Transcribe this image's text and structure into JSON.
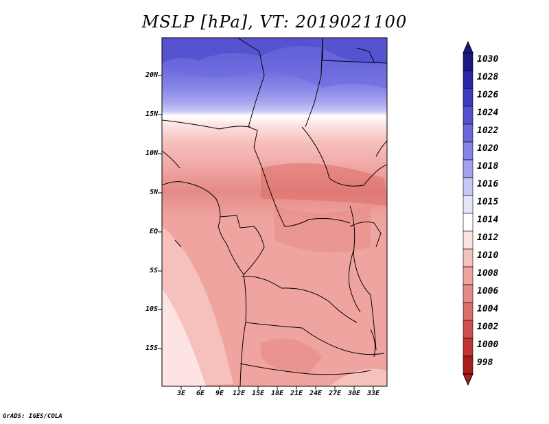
{
  "title": "MSLP [hPa], VT: 2019021100",
  "credit": "GrADS: IGES/COLA",
  "lat_labels": [
    "20N",
    "15N",
    "10N",
    "5N",
    "EQ",
    "5S",
    "10S",
    "15S"
  ],
  "lon_labels": [
    "3E",
    "6E",
    "9E",
    "12E",
    "15E",
    "18E",
    "21E",
    "24E",
    "27E",
    "30E",
    "33E"
  ],
  "colorbar": {
    "labels": [
      "1030",
      "1028",
      "1026",
      "1024",
      "1022",
      "1020",
      "1018",
      "1016",
      "1015",
      "1014",
      "1012",
      "1010",
      "1008",
      "1006",
      "1004",
      "1002",
      "1000",
      "998"
    ],
    "colors": [
      "#1b1780",
      "#2a25a5",
      "#3d3ac0",
      "#5450cf",
      "#6b68dd",
      "#8583e6",
      "#a3a1ee",
      "#c7c6f5",
      "#e6e6fb",
      "#ffffff",
      "#fde3e2",
      "#f6c0bd",
      "#f0a4a0",
      "#e58a86",
      "#dd6d69",
      "#d04f4c",
      "#c03432",
      "#a81d1c"
    ]
  }
}
